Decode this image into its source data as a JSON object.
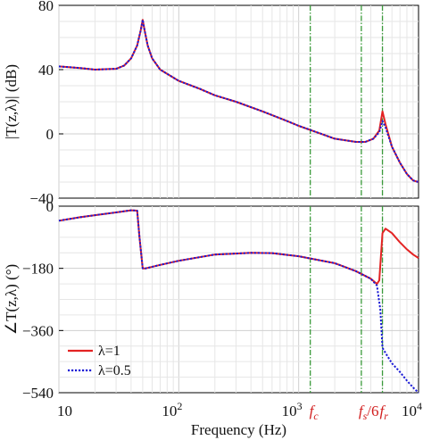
{
  "chart_data": {
    "type": "line",
    "xlabel": "Frequency (Hz)",
    "xscale": "log",
    "xlim": [
      10,
      10000
    ],
    "x_ticks": [
      {
        "value": 10,
        "base": "10",
        "exp": ""
      },
      {
        "value": 100,
        "base": "10",
        "exp": "2"
      },
      {
        "value": 1000,
        "base": "10",
        "exp": "3"
      },
      {
        "value": 10000,
        "base": "10",
        "exp": "4"
      }
    ],
    "markers": [
      {
        "x": 1250,
        "label": "f",
        "sub": "c",
        "suffix": ""
      },
      {
        "x": 3333,
        "label": "f",
        "sub": "s",
        "suffix": "/6"
      },
      {
        "x": 5000,
        "label": "f",
        "sub": "r",
        "suffix": ""
      }
    ],
    "legend": [
      {
        "label": "λ=1",
        "color": "#e32323",
        "dash": "solid"
      },
      {
        "label": "λ=0.5",
        "color": "#1a1ad6",
        "dash": "dotted"
      }
    ],
    "panels": [
      {
        "name": "magnitude",
        "ylabel": "|T(z,λ)| (dB)",
        "ylim": [
          -40,
          80
        ],
        "yticks": [
          -40,
          0,
          40,
          80
        ],
        "series": [
          {
            "name": "λ=1",
            "color": "#e32323",
            "points": [
              [
                10,
                42
              ],
              [
                15,
                41
              ],
              [
                20,
                40
              ],
              [
                30,
                40.5
              ],
              [
                35,
                42.5
              ],
              [
                40,
                47
              ],
              [
                45,
                55
              ],
              [
                48,
                64
              ],
              [
                50,
                71
              ],
              [
                52,
                64
              ],
              [
                55,
                55
              ],
              [
                60,
                47
              ],
              [
                70,
                40
              ],
              [
                100,
                33
              ],
              [
                150,
                28
              ],
              [
                200,
                24
              ],
              [
                300,
                20
              ],
              [
                500,
                14
              ],
              [
                800,
                8
              ],
              [
                1000,
                5
              ],
              [
                1300,
                2
              ],
              [
                2000,
                -3
              ],
              [
                3000,
                -5
              ],
              [
                3600,
                -5
              ],
              [
                4200,
                -3
              ],
              [
                4700,
                2
              ],
              [
                5000,
                14
              ],
              [
                5300,
                6
              ],
              [
                6000,
                -8
              ],
              [
                7000,
                -18
              ],
              [
                8000,
                -25
              ],
              [
                9000,
                -29
              ],
              [
                10000,
                -30
              ]
            ]
          },
          {
            "name": "λ=0.5",
            "color": "#1a1ad6",
            "points": [
              [
                10,
                42
              ],
              [
                15,
                41
              ],
              [
                20,
                40
              ],
              [
                30,
                40.5
              ],
              [
                35,
                42.5
              ],
              [
                40,
                47
              ],
              [
                45,
                55
              ],
              [
                48,
                64
              ],
              [
                50,
                71
              ],
              [
                52,
                64
              ],
              [
                55,
                55
              ],
              [
                60,
                47
              ],
              [
                70,
                40
              ],
              [
                100,
                33
              ],
              [
                150,
                28
              ],
              [
                200,
                24
              ],
              [
                300,
                20
              ],
              [
                500,
                14
              ],
              [
                800,
                8
              ],
              [
                1000,
                5
              ],
              [
                1300,
                2
              ],
              [
                2000,
                -3
              ],
              [
                3000,
                -5
              ],
              [
                3600,
                -5
              ],
              [
                4200,
                -3
              ],
              [
                4700,
                1
              ],
              [
                5000,
                8
              ],
              [
                5300,
                4
              ],
              [
                6000,
                -8
              ],
              [
                7000,
                -18
              ],
              [
                8000,
                -25
              ],
              [
                9000,
                -29
              ],
              [
                10000,
                -30
              ]
            ]
          }
        ]
      },
      {
        "name": "phase",
        "ylabel": "∠T(z,λ) (°)",
        "ylim": [
          -540,
          0
        ],
        "yticks": [
          -540,
          -360,
          -180,
          0
        ],
        "series": [
          {
            "name": "λ=1",
            "color": "#e32323",
            "points": [
              [
                10,
                -42
              ],
              [
                15,
                -32
              ],
              [
                20,
                -26
              ],
              [
                30,
                -18
              ],
              [
                40,
                -12
              ],
              [
                45,
                -13
              ],
              [
                47,
                -90
              ],
              [
                50,
                -180
              ],
              [
                53,
                -180
              ],
              [
                70,
                -170
              ],
              [
                100,
                -158
              ],
              [
                200,
                -140
              ],
              [
                400,
                -135
              ],
              [
                600,
                -136
              ],
              [
                1000,
                -145
              ],
              [
                2000,
                -165
              ],
              [
                3000,
                -188
              ],
              [
                4000,
                -210
              ],
              [
                4500,
                -225
              ],
              [
                4700,
                -215
              ],
              [
                5000,
                -78
              ],
              [
                5300,
                -65
              ],
              [
                6000,
                -78
              ],
              [
                7000,
                -105
              ],
              [
                8000,
                -125
              ],
              [
                9000,
                -140
              ],
              [
                10000,
                -150
              ]
            ]
          },
          {
            "name": "λ=0.5",
            "color": "#1a1ad6",
            "points": [
              [
                10,
                -42
              ],
              [
                15,
                -32
              ],
              [
                20,
                -26
              ],
              [
                30,
                -18
              ],
              [
                40,
                -12
              ],
              [
                45,
                -13
              ],
              [
                47,
                -90
              ],
              [
                50,
                -180
              ],
              [
                53,
                -180
              ],
              [
                70,
                -170
              ],
              [
                100,
                -158
              ],
              [
                200,
                -140
              ],
              [
                400,
                -135
              ],
              [
                600,
                -136
              ],
              [
                1000,
                -145
              ],
              [
                2000,
                -165
              ],
              [
                3000,
                -188
              ],
              [
                4000,
                -210
              ],
              [
                4500,
                -230
              ],
              [
                4800,
                -300
              ],
              [
                5000,
                -410
              ],
              [
                5300,
                -425
              ],
              [
                6000,
                -455
              ],
              [
                7000,
                -480
              ],
              [
                8000,
                -505
              ],
              [
                9000,
                -525
              ],
              [
                10000,
                -540
              ]
            ]
          }
        ]
      }
    ]
  }
}
